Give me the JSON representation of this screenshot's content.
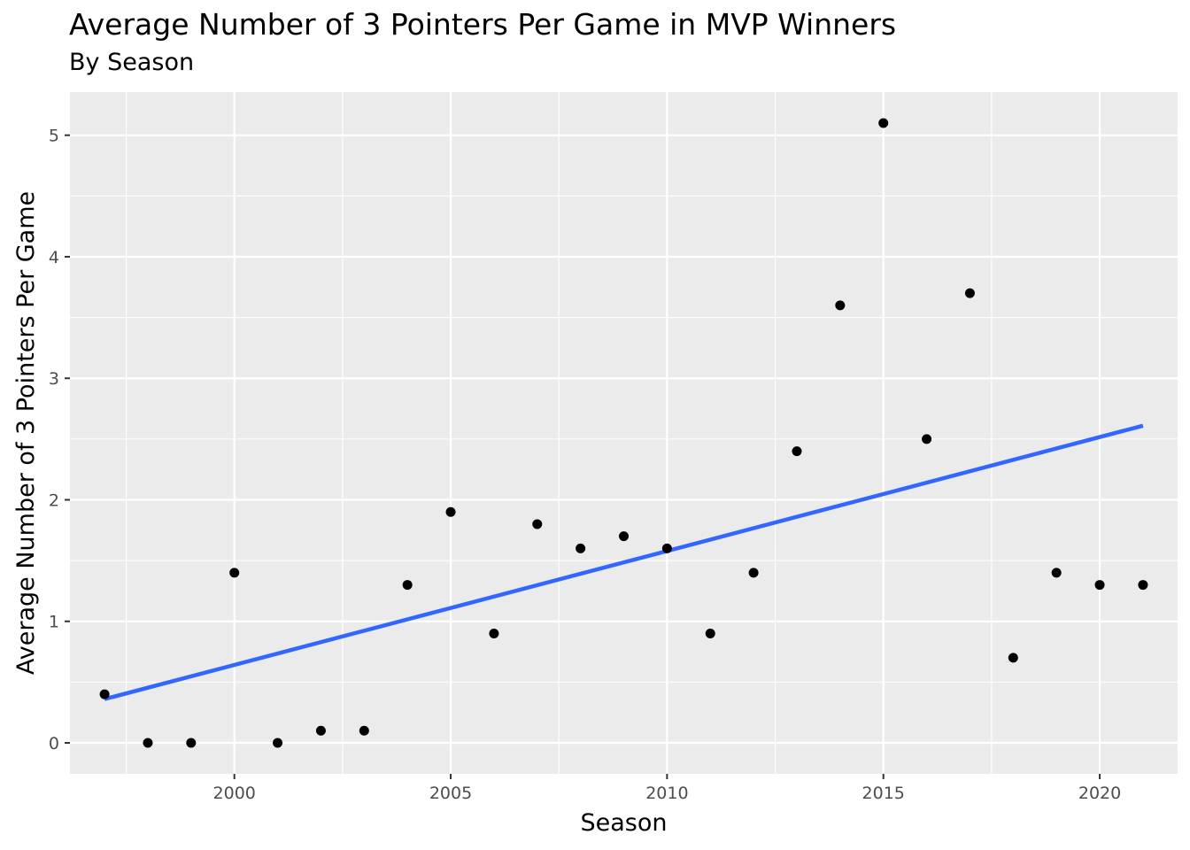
{
  "chart_data": {
    "type": "scatter",
    "title": "Average Number of 3 Pointers Per Game in MVP Winners",
    "subtitle": "By Season",
    "xlabel": "Season",
    "ylabel": "Average Number of 3 Pointers Per Game",
    "xlim": [
      1996.2,
      2021.8
    ],
    "ylim": [
      -0.255,
      5.355
    ],
    "x_ticks": [
      2000,
      2005,
      2010,
      2015,
      2020
    ],
    "y_ticks": [
      0,
      1,
      2,
      3,
      4,
      5
    ],
    "grid": true,
    "points": [
      {
        "x": 1997,
        "y": 0.4
      },
      {
        "x": 1998,
        "y": 0.0
      },
      {
        "x": 1999,
        "y": 0.0
      },
      {
        "x": 2000,
        "y": 1.4
      },
      {
        "x": 2001,
        "y": 0.0
      },
      {
        "x": 2002,
        "y": 0.1
      },
      {
        "x": 2003,
        "y": 0.1
      },
      {
        "x": 2004,
        "y": 1.3
      },
      {
        "x": 2005,
        "y": 1.9
      },
      {
        "x": 2006,
        "y": 0.9
      },
      {
        "x": 2007,
        "y": 1.8
      },
      {
        "x": 2008,
        "y": 1.6
      },
      {
        "x": 2009,
        "y": 1.7
      },
      {
        "x": 2010,
        "y": 1.6
      },
      {
        "x": 2011,
        "y": 0.9
      },
      {
        "x": 2012,
        "y": 1.4
      },
      {
        "x": 2013,
        "y": 2.4
      },
      {
        "x": 2014,
        "y": 3.6
      },
      {
        "x": 2015,
        "y": 5.1
      },
      {
        "x": 2016,
        "y": 2.5
      },
      {
        "x": 2017,
        "y": 3.7
      },
      {
        "x": 2018,
        "y": 0.7
      },
      {
        "x": 2019,
        "y": 1.4
      },
      {
        "x": 2020,
        "y": 1.3
      },
      {
        "x": 2021,
        "y": 1.3
      }
    ],
    "trend_line": {
      "x": [
        1997,
        2021
      ],
      "y": [
        0.36,
        2.61
      ]
    },
    "colors": {
      "panel": "#ebebeb",
      "grid": "#ffffff",
      "point": "#000000",
      "trend": "#3366ff"
    }
  }
}
